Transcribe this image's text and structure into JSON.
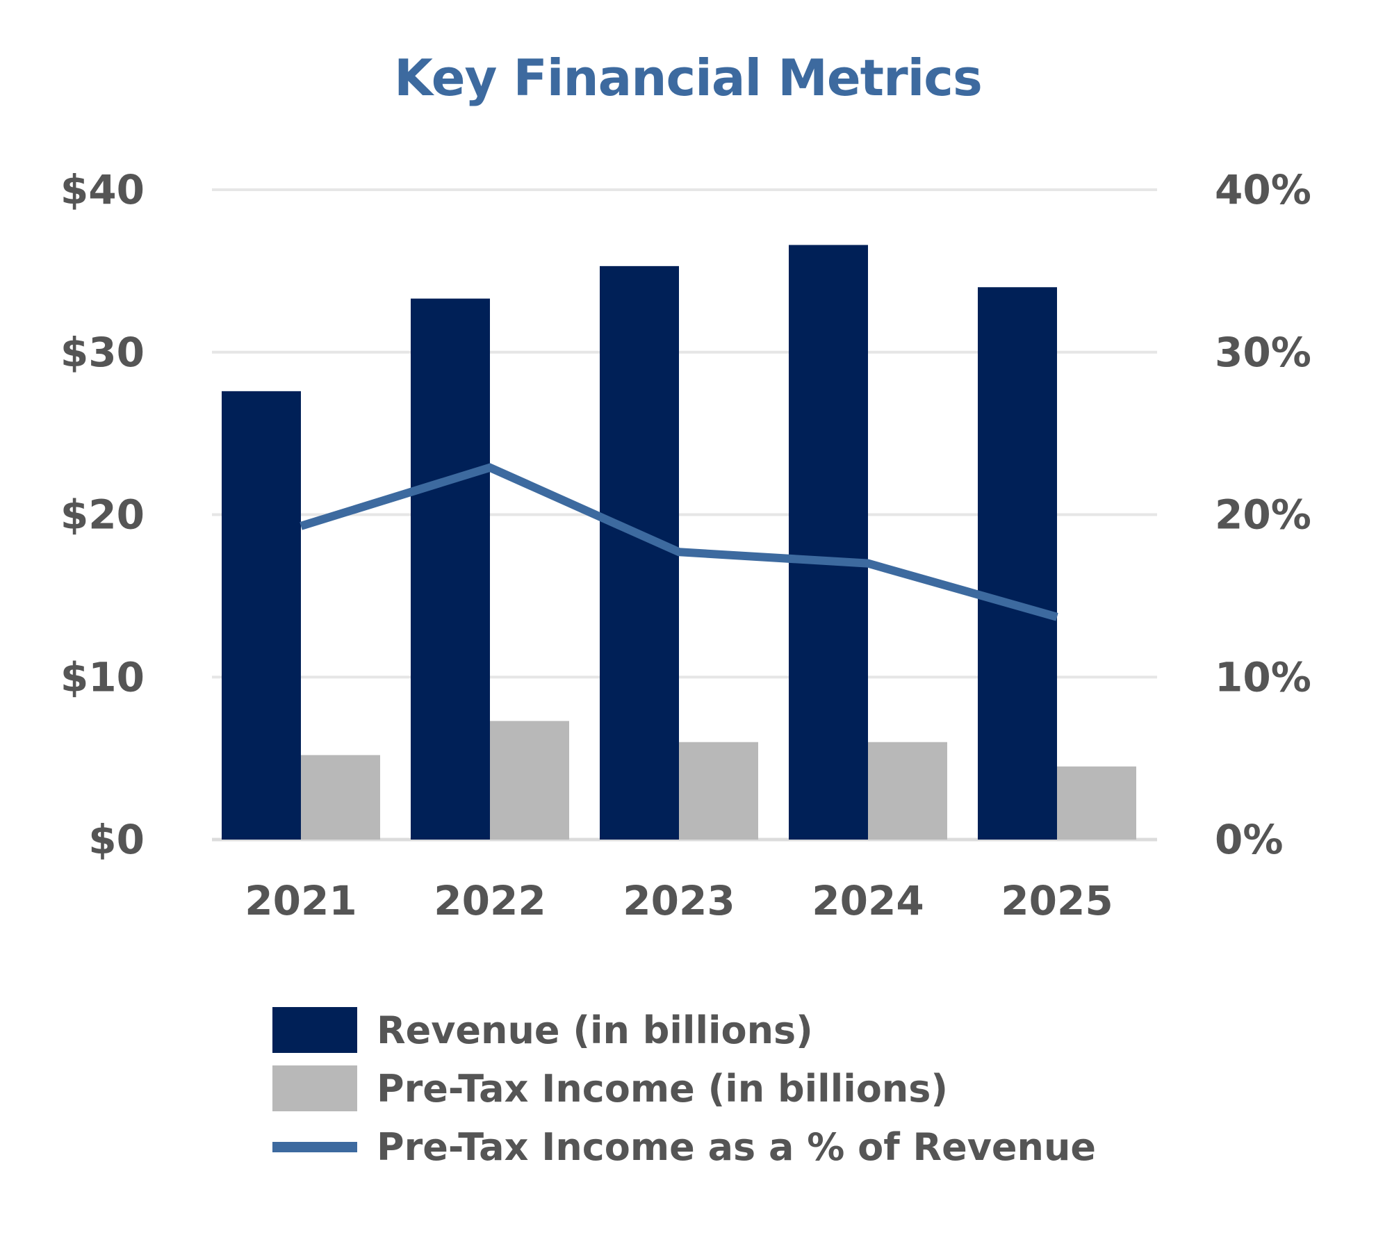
{
  "chart_data": {
    "type": "bar",
    "title": "Key Financial Metrics",
    "categories": [
      "2021",
      "2022",
      "2023",
      "2024",
      "2025"
    ],
    "series": [
      {
        "name": "Revenue (in billions)",
        "type": "bar",
        "axis": "left",
        "color": "#002057",
        "values": [
          27.6,
          33.3,
          35.3,
          36.6,
          34.0
        ]
      },
      {
        "name": "Pre-Tax Income (in billions)",
        "type": "bar",
        "axis": "left",
        "color": "#b8b8b8",
        "values": [
          5.2,
          7.3,
          6.0,
          6.0,
          4.5
        ]
      },
      {
        "name": "Pre-Tax Income as a % of Revenue",
        "type": "line",
        "axis": "right",
        "color": "#3d6a9f",
        "values": [
          19.3,
          22.9,
          17.7,
          17.0,
          13.7
        ]
      }
    ],
    "y_left": {
      "ylim": [
        0,
        40
      ],
      "ticks": [
        0,
        10,
        20,
        30,
        40
      ],
      "tick_labels": [
        "$0",
        "$10",
        "$20",
        "$30",
        "$40"
      ]
    },
    "y_right": {
      "ylim": [
        0,
        40
      ],
      "ticks": [
        0,
        10,
        20,
        30,
        40
      ],
      "tick_labels": [
        "0%",
        "10%",
        "20%",
        "30%",
        "40%"
      ]
    },
    "grid": true,
    "legend_position": "bottom"
  },
  "legend": {
    "items": [
      {
        "label": "Revenue (in billions)",
        "color": "#002057",
        "kind": "bar"
      },
      {
        "label": "Pre-Tax Income (in billions)",
        "color": "#b8b8b8",
        "kind": "bar"
      },
      {
        "label": "Pre-Tax Income as a % of Revenue",
        "color": "#3d6a9f",
        "kind": "line"
      }
    ]
  }
}
